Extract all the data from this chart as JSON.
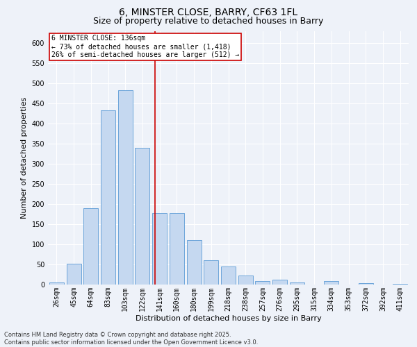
{
  "title": "6, MINSTER CLOSE, BARRY, CF63 1FL",
  "subtitle": "Size of property relative to detached houses in Barry",
  "xlabel": "Distribution of detached houses by size in Barry",
  "ylabel": "Number of detached properties",
  "categories": [
    "26sqm",
    "45sqm",
    "64sqm",
    "83sqm",
    "103sqm",
    "122sqm",
    "141sqm",
    "160sqm",
    "180sqm",
    "199sqm",
    "218sqm",
    "238sqm",
    "257sqm",
    "276sqm",
    "295sqm",
    "315sqm",
    "334sqm",
    "353sqm",
    "372sqm",
    "392sqm",
    "411sqm"
  ],
  "values": [
    5,
    52,
    190,
    433,
    483,
    340,
    178,
    178,
    110,
    60,
    45,
    22,
    8,
    12,
    5,
    0,
    8,
    0,
    3,
    0,
    2
  ],
  "bar_color": "#c5d8f0",
  "bar_edge_color": "#5b9bd5",
  "bar_width": 0.85,
  "ylim": [
    0,
    630
  ],
  "yticks": [
    0,
    50,
    100,
    150,
    200,
    250,
    300,
    350,
    400,
    450,
    500,
    550,
    600
  ],
  "vline_color": "#cc0000",
  "annotation_text": "6 MINSTER CLOSE: 136sqm\n← 73% of detached houses are smaller (1,418)\n26% of semi-detached houses are larger (512) →",
  "annotation_box_color": "#ffffff",
  "annotation_box_edgecolor": "#cc0000",
  "footer_text": "Contains HM Land Registry data © Crown copyright and database right 2025.\nContains public sector information licensed under the Open Government Licence v3.0.",
  "bg_color": "#eef2f9",
  "plot_bg_color": "#eef2f9",
  "grid_color": "#ffffff",
  "title_fontsize": 10,
  "subtitle_fontsize": 9,
  "axis_label_fontsize": 8,
  "tick_fontsize": 7,
  "annotation_fontsize": 7,
  "footer_fontsize": 6
}
